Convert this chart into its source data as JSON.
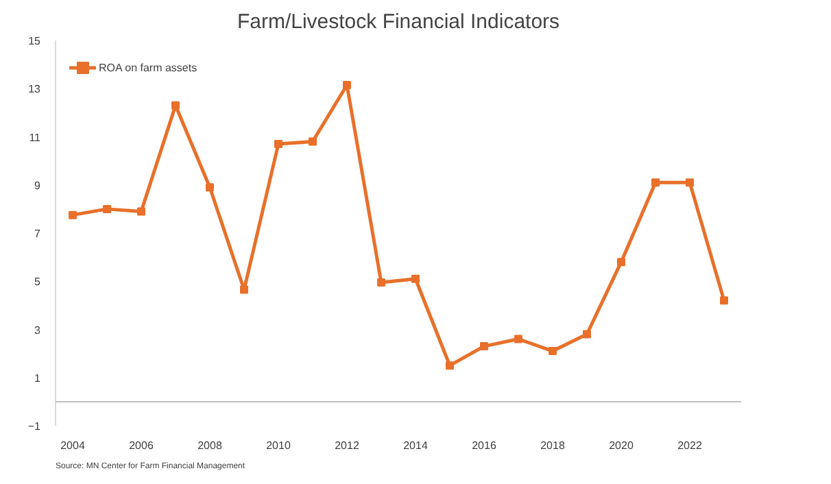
{
  "chart_data": {
    "type": "line",
    "title": "Farm/Livestock Financial Indicators",
    "x": [
      2004,
      2005,
      2006,
      2007,
      2008,
      2009,
      2010,
      2011,
      2012,
      2013,
      2014,
      2015,
      2016,
      2017,
      2018,
      2019,
      2020,
      2021,
      2022,
      2023
    ],
    "series": [
      {
        "name": "ROA on farm assets",
        "color": "#e8702a",
        "values": [
          7.75,
          8.0,
          7.9,
          12.3,
          8.9,
          4.65,
          10.7,
          10.8,
          13.15,
          4.95,
          5.1,
          1.5,
          2.3,
          2.6,
          2.1,
          2.8,
          5.8,
          9.1,
          9.1,
          4.2
        ]
      }
    ],
    "xlim": [
      2003.5,
      2023.5
    ],
    "xticks": [
      2004,
      2006,
      2008,
      2010,
      2012,
      2014,
      2016,
      2018,
      2020,
      2022
    ],
    "ylim": [
      -1,
      15
    ],
    "yticks": [
      -1,
      1,
      3,
      5,
      7,
      9,
      11,
      13,
      15
    ],
    "ref_lines": [
      {
        "axis": "y",
        "value": 0,
        "color": "#bfbfbf"
      }
    ],
    "grid": false,
    "legend": "top left",
    "marker": "square",
    "line_style": "solid",
    "annotations": [
      "Source: MN Center for Farm Financial Management"
    ]
  }
}
